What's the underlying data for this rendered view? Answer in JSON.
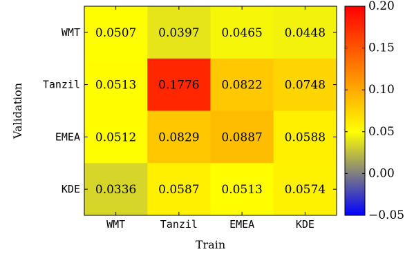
{
  "chart_data": {
    "type": "heatmap",
    "xlabel": "Train",
    "ylabel": "Validation",
    "x_categories": [
      "WMT",
      "Tanzil",
      "EMEA",
      "KDE"
    ],
    "y_categories": [
      "WMT",
      "Tanzil",
      "EMEA",
      "KDE"
    ],
    "values": [
      [
        0.0507,
        0.0397,
        0.0465,
        0.0448
      ],
      [
        0.0513,
        0.1776,
        0.0822,
        0.0748
      ],
      [
        0.0512,
        0.0829,
        0.0887,
        0.0588
      ],
      [
        0.0336,
        0.0587,
        0.0513,
        0.0574
      ]
    ],
    "value_labels": [
      [
        "0.0507",
        "0.0397",
        "0.0465",
        "0.0448"
      ],
      [
        "0.0513",
        "0.1776",
        "0.0822",
        "0.0748"
      ],
      [
        "0.0512",
        "0.0829",
        "0.0887",
        "0.0588"
      ],
      [
        "0.0336",
        "0.0587",
        "0.0513",
        "0.0574"
      ]
    ],
    "colorbar": {
      "min": -0.05,
      "max": 0.2,
      "ticks": [
        -0.05,
        0.0,
        0.05,
        0.1,
        0.15,
        0.2
      ],
      "tick_labels": [
        "−0.05",
        "0.00",
        "0.05",
        "0.10",
        "0.15",
        "0.20"
      ],
      "colormap": [
        "#0000ff",
        "#ffff00",
        "#ff0000"
      ],
      "colormap_stops": [
        -0.05,
        0.05,
        0.2
      ]
    }
  }
}
